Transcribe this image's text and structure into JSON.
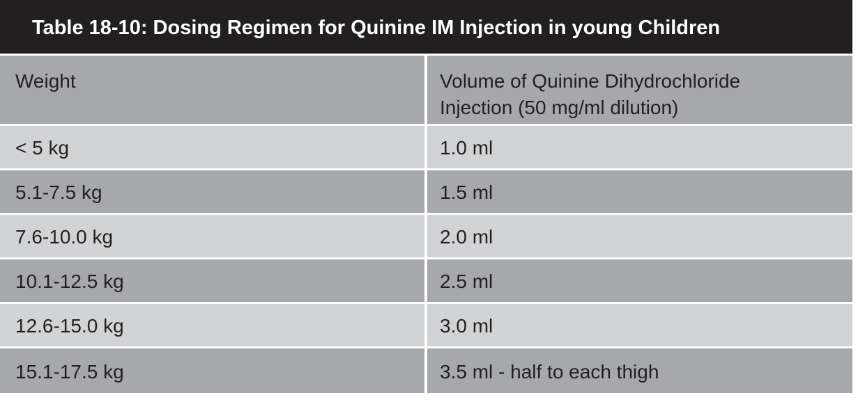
{
  "title": "Table 18-10:  Dosing Regimen for Quinine IM Injection in young Children",
  "columns": {
    "weight": "Weight",
    "volume_line1": "Volume of Quinine Dihydrochloride",
    "volume_line2": "Injection  (50 mg/ml dilution)"
  },
  "rows": [
    {
      "weight": "< 5 kg",
      "volume": "1.0 ml"
    },
    {
      "weight": "5.1-7.5 kg",
      "volume": "1.5 ml"
    },
    {
      "weight": "7.6-10.0 kg",
      "volume": "2.0 ml"
    },
    {
      "weight": "10.1-12.5 kg",
      "volume": "2.5 ml"
    },
    {
      "weight": "12.6-15.0 kg",
      "volume": "3.0 ml"
    },
    {
      "weight": "15.1-17.5 kg",
      "volume": "3.5 ml - half to each thigh"
    }
  ],
  "colors": {
    "title_background": "#221f20",
    "row_light": "#d2d3d5",
    "row_dark": "#a6a8ab",
    "text": "#231f20"
  }
}
